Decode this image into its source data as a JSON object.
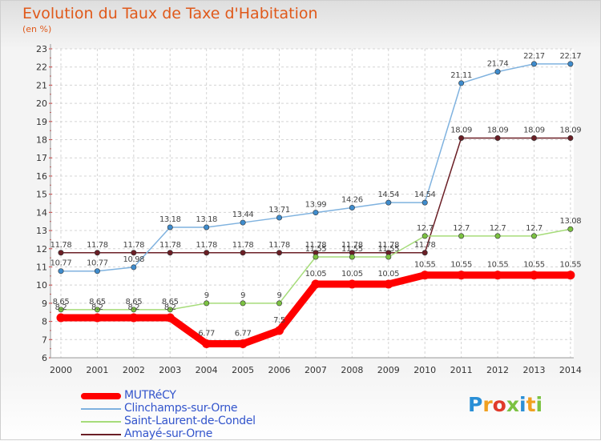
{
  "title": "Evolution du Taux de Taxe d'Habitation",
  "subtitle": "(en %)",
  "logo": {
    "text": "Proxiti",
    "colors": [
      "#2a8fd6",
      "#f0a020",
      "#e03a2a",
      "#7cc242",
      "#2a8fd6",
      "#f0a020",
      "#7cc242"
    ]
  },
  "chart_data": {
    "type": "line",
    "x": [
      2000,
      2001,
      2002,
      2003,
      2004,
      2005,
      2006,
      2007,
      2008,
      2009,
      2010,
      2011,
      2012,
      2013,
      2014
    ],
    "ylim": [
      6,
      23
    ],
    "yticks": [
      6,
      7,
      8,
      9,
      10,
      11,
      12,
      13,
      14,
      15,
      16,
      17,
      18,
      19,
      20,
      21,
      22,
      23
    ],
    "grid": true,
    "series": [
      {
        "name": "Amayé-sur-Orne",
        "color": "#6b1f26",
        "marker": "#6b1f26",
        "values": [
          11.78,
          11.78,
          11.78,
          11.78,
          11.78,
          11.78,
          11.78,
          11.78,
          11.78,
          11.78,
          11.78,
          18.09,
          18.09,
          18.09,
          18.09
        ]
      },
      {
        "name": "Saint-Laurent-de-Condel",
        "color": "#a6dc7a",
        "marker": "#7cc242",
        "values": [
          8.65,
          8.65,
          8.65,
          8.65,
          9,
          9,
          9,
          11.55,
          11.55,
          11.55,
          12.7,
          12.7,
          12.7,
          12.7,
          13.08
        ]
      },
      {
        "name": "Clinchamps-sur-Orne",
        "color": "#7fb2df",
        "marker": "#3f8ccd",
        "values": [
          10.77,
          10.77,
          10.98,
          13.18,
          13.18,
          13.44,
          13.71,
          13.99,
          14.26,
          14.54,
          14.54,
          21.11,
          21.74,
          22.17,
          22.17
        ]
      },
      {
        "name": "MUTRéCY",
        "color": "#ff0000",
        "marker": "#ff0000",
        "values": [
          8.2,
          8.2,
          8.2,
          8.2,
          6.77,
          6.77,
          7.5,
          10.05,
          10.05,
          10.05,
          10.55,
          10.55,
          10.55,
          10.55,
          10.55
        ]
      }
    ],
    "legend": {
      "placement": "bottom-left",
      "entries": [
        "MUTRéCY",
        "Clinchamps-sur-Orne",
        "Saint-Laurent-de-Condel",
        "Amayé-sur-Orne"
      ]
    }
  }
}
